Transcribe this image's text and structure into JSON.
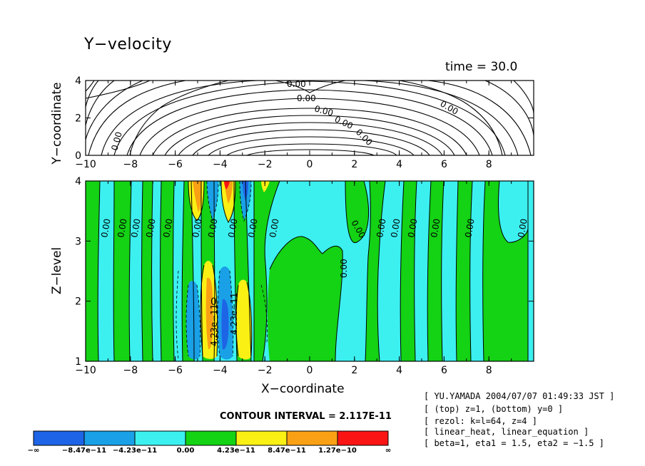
{
  "title": "Y−velocity",
  "time_label": "time = 30.0",
  "x_label": "X−coordinate",
  "contour_interval": "CONTOUR INTERVAL = 2.117E-11",
  "info_lines": [
    "[ YU.YAMADA 2004/07/07 01:49:33 JST ]",
    "[ (top) z=1, (bottom) y=0 ]",
    "[ rezol: k=l=64, z=4 ]",
    "[ linear_heat, linear_equation ]",
    "[ beta=1, eta1 = 1.5, eta2 = −1.5 ]"
  ],
  "chart_data": [
    {
      "type": "contour",
      "panel": "top",
      "ylabel": "Y−coordinate",
      "xlim": [
        -10,
        10
      ],
      "ylim": [
        0,
        4
      ],
      "x_ticks": [
        "−10",
        "−8",
        "−6",
        "−4",
        "−2",
        "0",
        "2",
        "4",
        "6",
        "8"
      ],
      "y_ticks": [
        "0",
        "2",
        "4"
      ],
      "contour_labels": [
        "0.00",
        "0.00",
        "0.00",
        "0.00",
        "0.00",
        "0.00",
        "0.00"
      ]
    },
    {
      "type": "contourf",
      "panel": "bottom",
      "ylabel": "Z−level",
      "xlabel": "X−coordinate",
      "xlim": [
        -10,
        10
      ],
      "ylim": [
        1,
        4
      ],
      "x_ticks": [
        "−10",
        "−8",
        "−6",
        "−4",
        "−2",
        "0",
        "2",
        "4",
        "6",
        "8"
      ],
      "y_ticks": [
        "1",
        "2",
        "3",
        "4"
      ],
      "contour_labels": [
        "0.00",
        "0.00",
        "0.00",
        "0.00",
        "0.00",
        "0.00",
        "0.00",
        "0.00",
        "0.00",
        "0.00",
        "0.00",
        "0.00",
        "0.00",
        "0.00",
        "0.00",
        "0.00",
        "0.00",
        "4.23e−11",
        "4.23e−11",
        "0"
      ]
    }
  ],
  "colorbar": {
    "labels": [
      "−∞",
      "−8.47e−11",
      "−4.23e−11",
      "0.00",
      "4.23e−11",
      "8.47e−11",
      "1.27e−10",
      "∞"
    ],
    "colors": [
      "#1e64e6",
      "#19a0e6",
      "#3cf0f0",
      "#14d214",
      "#faf014",
      "#faa014",
      "#fa1414"
    ]
  }
}
